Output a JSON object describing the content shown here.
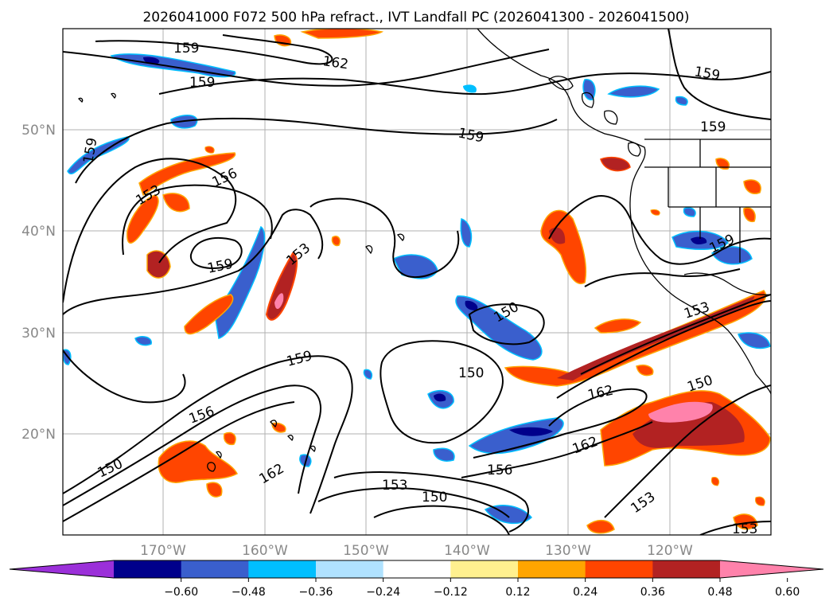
{
  "title": "2026041000 F072 500 hPa refract., IVT Landfall PC (2026041300 - 2026041500)",
  "lon_ticks": [
    "170°W",
    "160°W",
    "150°W",
    "140°W",
    "130°W",
    "120°W"
  ],
  "lat_ticks": [
    "50°N",
    "40°N",
    "30°N",
    "20°N"
  ],
  "colorbar": {
    "colors": [
      "#9b30d9",
      "#00008b",
      "#3a5fcd",
      "#00bfff",
      "#b0e2ff",
      "#ffffff",
      "#fff08f",
      "#ffa500",
      "#ff4500",
      "#b22222",
      "#ff82ab"
    ],
    "labels": [
      "−0.60",
      "−0.48",
      "−0.36",
      "−0.24",
      "−0.12",
      "0.12",
      "0.24",
      "0.36",
      "0.48",
      "0.60"
    ]
  },
  "contour_labels": [
    "159",
    "162",
    "159",
    "159",
    "159",
    "159",
    "156",
    "153",
    "159",
    "153",
    "159",
    "150",
    "153",
    "150",
    "159",
    "159",
    "162",
    "156",
    "150",
    "162",
    "156",
    "153",
    "150",
    "153",
    "153",
    "150"
  ]
}
